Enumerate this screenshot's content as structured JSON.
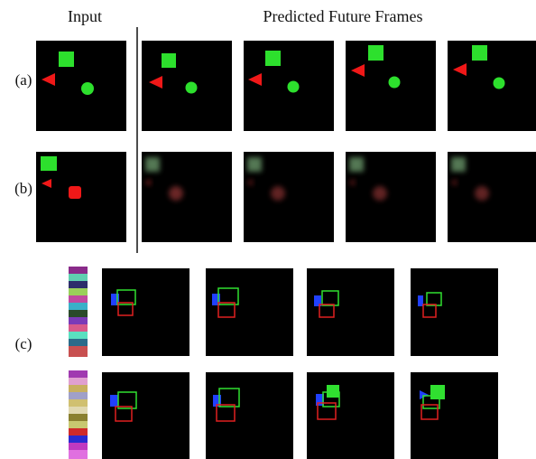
{
  "header": {
    "input": "Input",
    "predicted": "Predicted Future Frames"
  },
  "rows": {
    "a": "(a)",
    "b": "(b)",
    "c": "(c)"
  }
}
